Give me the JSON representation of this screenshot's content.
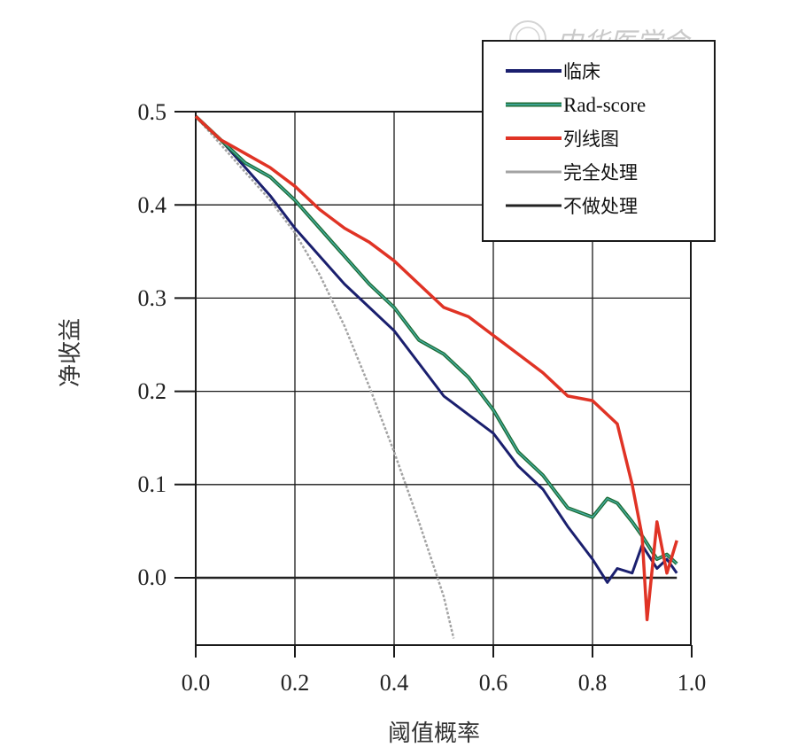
{
  "chart_data": {
    "type": "line",
    "xlabel": "阈值概率",
    "ylabel": "净收益",
    "xlim": [
      0.0,
      1.0
    ],
    "ylim": [
      -0.07,
      0.5
    ],
    "x_ticks": [
      "0.0",
      "0.2",
      "0.4",
      "0.6",
      "0.8",
      "1.0"
    ],
    "y_ticks": [
      "0.5",
      "0.4",
      "0.3",
      "0.2",
      "0.1",
      "0.0"
    ],
    "grid": true,
    "legend_position": "top-right",
    "series": [
      {
        "name": "临床",
        "color": "#1a1f6e",
        "x": [
          0.0,
          0.05,
          0.1,
          0.15,
          0.2,
          0.25,
          0.3,
          0.35,
          0.4,
          0.45,
          0.5,
          0.55,
          0.6,
          0.65,
          0.7,
          0.75,
          0.8,
          0.83,
          0.85,
          0.88,
          0.9,
          0.93,
          0.95,
          0.97
        ],
        "y": [
          0.495,
          0.47,
          0.44,
          0.41,
          0.375,
          0.345,
          0.315,
          0.29,
          0.265,
          0.23,
          0.195,
          0.175,
          0.155,
          0.12,
          0.095,
          0.055,
          0.02,
          -0.005,
          0.01,
          0.005,
          0.035,
          0.01,
          0.02,
          0.005
        ]
      },
      {
        "name": "Rad-score",
        "color": "#1f6e36",
        "x": [
          0.0,
          0.05,
          0.1,
          0.15,
          0.2,
          0.25,
          0.3,
          0.35,
          0.4,
          0.45,
          0.5,
          0.55,
          0.6,
          0.65,
          0.7,
          0.75,
          0.8,
          0.83,
          0.85,
          0.88,
          0.9,
          0.93,
          0.95,
          0.97
        ],
        "y": [
          0.495,
          0.47,
          0.445,
          0.43,
          0.405,
          0.375,
          0.345,
          0.315,
          0.29,
          0.255,
          0.24,
          0.215,
          0.18,
          0.135,
          0.11,
          0.075,
          0.065,
          0.085,
          0.08,
          0.06,
          0.045,
          0.02,
          0.025,
          0.015
        ]
      },
      {
        "name": "列线图",
        "color": "#e03325",
        "x": [
          0.0,
          0.05,
          0.1,
          0.15,
          0.2,
          0.25,
          0.3,
          0.35,
          0.4,
          0.45,
          0.5,
          0.55,
          0.6,
          0.65,
          0.7,
          0.75,
          0.8,
          0.83,
          0.85,
          0.88,
          0.9,
          0.91,
          0.93,
          0.95,
          0.97
        ],
        "y": [
          0.495,
          0.47,
          0.455,
          0.44,
          0.42,
          0.395,
          0.375,
          0.36,
          0.34,
          0.315,
          0.29,
          0.28,
          0.26,
          0.24,
          0.22,
          0.195,
          0.19,
          0.175,
          0.165,
          0.1,
          0.045,
          -0.045,
          0.06,
          0.005,
          0.04
        ]
      },
      {
        "name": "完全处理",
        "color": "#a3a3a3",
        "x": [
          0.0,
          0.05,
          0.1,
          0.15,
          0.2,
          0.25,
          0.3,
          0.35,
          0.4,
          0.45,
          0.5,
          0.52
        ],
        "y": [
          0.495,
          0.465,
          0.435,
          0.405,
          0.37,
          0.325,
          0.27,
          0.205,
          0.135,
          0.06,
          -0.02,
          -0.065
        ]
      },
      {
        "name": "不做处理",
        "color": "#222222",
        "x": [
          0.0,
          0.97
        ],
        "y": [
          0.0,
          0.0
        ]
      }
    ]
  },
  "watermark": {
    "text": "中华医学会"
  }
}
